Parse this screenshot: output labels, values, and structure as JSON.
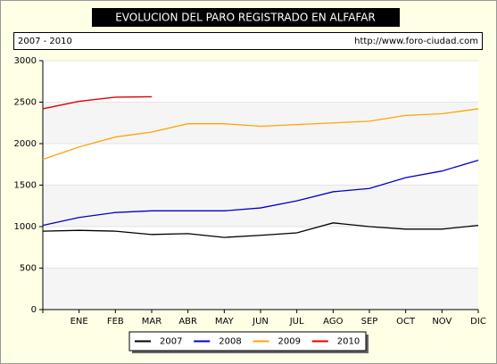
{
  "chart_data": {
    "type": "line",
    "title": "EVOLUCION DEL PARO REGISTRADO EN ALFAFAR",
    "subtitle": "2007 - 2010",
    "source": "http://www.foro-ciudad.com",
    "categories": [
      null,
      "ENE",
      "FEB",
      "MAR",
      "ABR",
      "MAY",
      "JUN",
      "JUL",
      "AGO",
      "SEP",
      "OCT",
      "NOV",
      "DIC"
    ],
    "series": [
      {
        "name": "2007",
        "color": "#000000",
        "values": [
          945,
          955,
          945,
          905,
          915,
          870,
          895,
          925,
          1045,
          1000,
          970,
          970,
          1015
        ]
      },
      {
        "name": "2008",
        "color": "#0000cc",
        "values": [
          1015,
          1110,
          1170,
          1190,
          1190,
          1190,
          1225,
          1310,
          1420,
          1460,
          1590,
          1670,
          1800
        ]
      },
      {
        "name": "2009",
        "color": "#ffa500",
        "values": [
          1810,
          1960,
          2080,
          2140,
          2240,
          2240,
          2210,
          2230,
          2250,
          2270,
          2340,
          2360,
          2420
        ]
      },
      {
        "name": "2010",
        "color": "#dd0000",
        "values": [
          2420,
          2510,
          2560,
          2565,
          null,
          null,
          null,
          null,
          null,
          null,
          null,
          null,
          null
        ]
      }
    ],
    "ylim": [
      0,
      3000
    ],
    "yticks": [
      0,
      500,
      1000,
      1500,
      2000,
      2500,
      3000
    ],
    "grid_bands": true,
    "legend": "bottom"
  }
}
